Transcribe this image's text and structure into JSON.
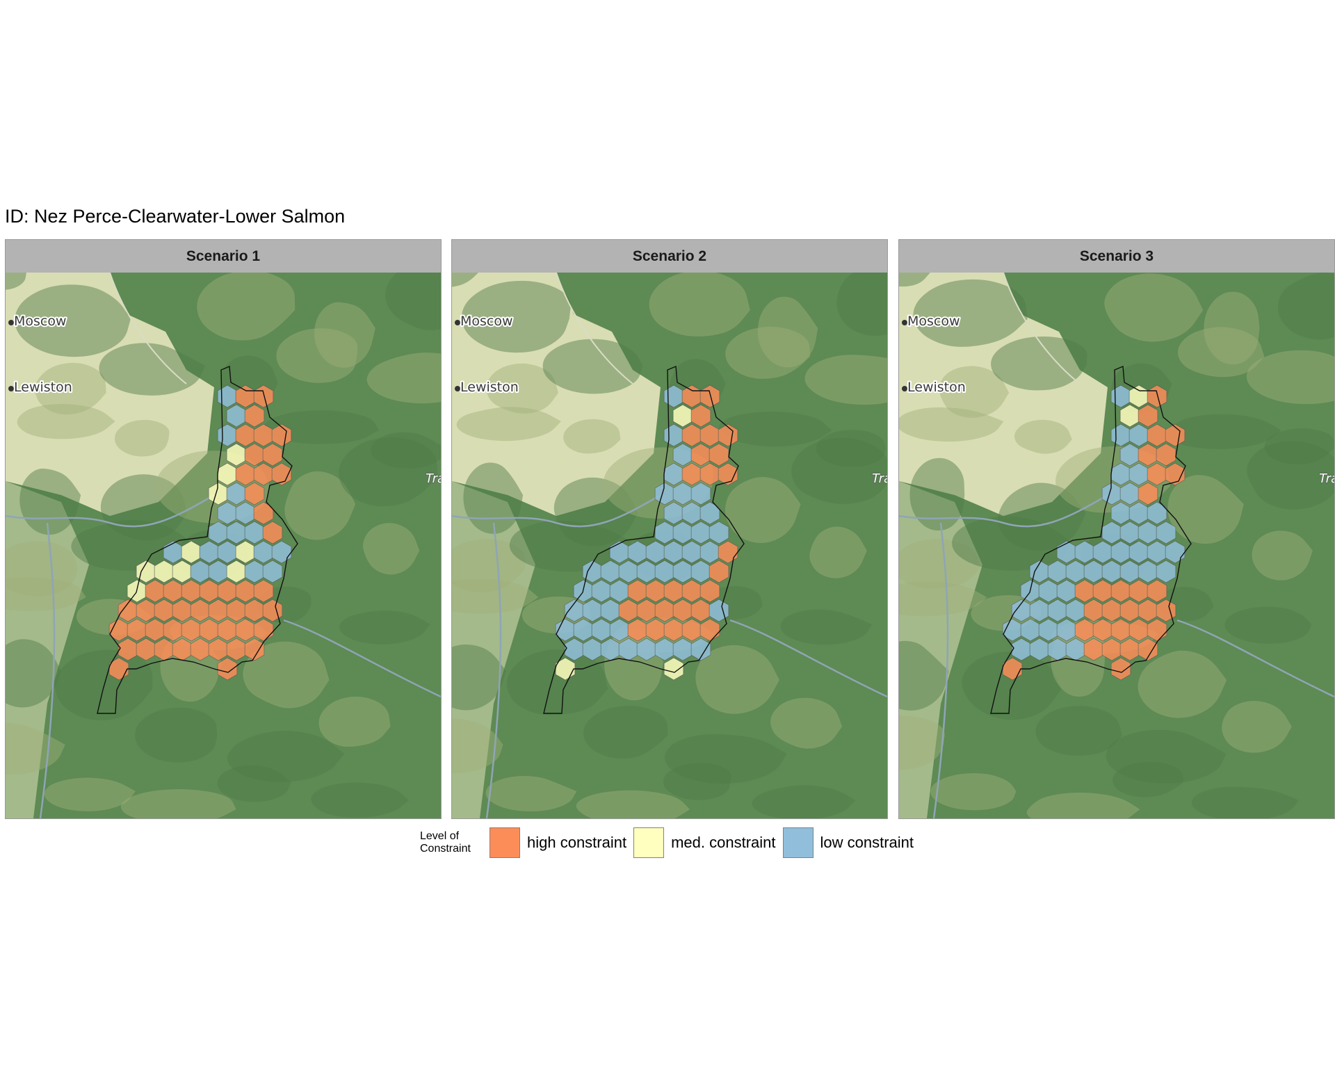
{
  "title": "ID: Nez Perce-Clearwater-Lower Salmon",
  "panels": [
    {
      "label": "Scenario 1"
    },
    {
      "label": "Scenario 2"
    },
    {
      "label": "Scenario 3"
    }
  ],
  "basemap": {
    "places": [
      {
        "name": "Moscow"
      },
      {
        "name": "Lewiston"
      }
    ],
    "edge_label": "Tra",
    "colors": {
      "forest": "#5e8a54",
      "valley": "#dfe2b8",
      "ridge": "#9fb07a"
    }
  },
  "legend": {
    "title_line1": "Level of",
    "title_line2": "Constraint",
    "items": [
      {
        "label": "high constraint",
        "color": "#fc8d59"
      },
      {
        "label": "med. constraint",
        "color": "#ffffbf"
      },
      {
        "label": "low constraint",
        "color": "#91bfdb"
      }
    ]
  }
}
